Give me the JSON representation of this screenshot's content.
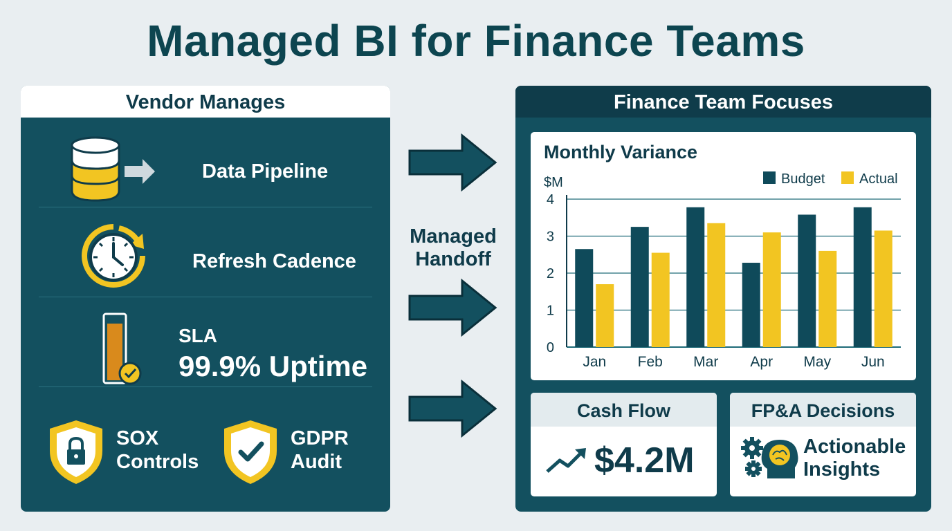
{
  "title": "Managed BI for Finance Teams",
  "left_panel": {
    "header": "Vendor Manages",
    "items": [
      {
        "label": "Data Pipeline",
        "icon": "database-arrow-icon"
      },
      {
        "label": "Refresh Cadence",
        "icon": "clock-refresh-icon"
      },
      {
        "label": "SLA",
        "value": "99.9% Uptime",
        "icon": "uptime-gauge-icon"
      }
    ],
    "compliance": [
      {
        "line1": "SOX",
        "line2": "Controls",
        "icon": "lock-shield-icon"
      },
      {
        "line1": "GDPR",
        "line2": "Audit",
        "icon": "check-shield-icon"
      }
    ]
  },
  "middle": {
    "handoff_line1": "Managed",
    "handoff_line2": "Handoff"
  },
  "right_panel": {
    "header": "Finance Team Focuses",
    "cash_flow": {
      "title": "Cash Flow",
      "value": "$4.2M"
    },
    "fpa": {
      "title": "FP&A Decisions",
      "line1": "Actionable",
      "line2": "Insights"
    }
  },
  "colors": {
    "navy": "#13505f",
    "budget": "#0f4a5a",
    "actual": "#f2c522",
    "accent_orange": "#d98a1c"
  },
  "chart_data": {
    "type": "bar",
    "title": "Monthly Variance",
    "ylabel": "$M",
    "categories": [
      "Jan",
      "Feb",
      "Mar",
      "Apr",
      "May",
      "Jun"
    ],
    "series": [
      {
        "name": "Budget",
        "values": [
          2.65,
          3.25,
          3.78,
          2.28,
          3.58,
          3.78
        ]
      },
      {
        "name": "Actual",
        "values": [
          1.7,
          2.55,
          3.35,
          3.1,
          2.6,
          3.15
        ]
      }
    ],
    "ylim": [
      0,
      4
    ],
    "yticks": [
      0,
      1,
      2,
      3,
      4
    ],
    "grid": true,
    "legend": "top-right"
  }
}
